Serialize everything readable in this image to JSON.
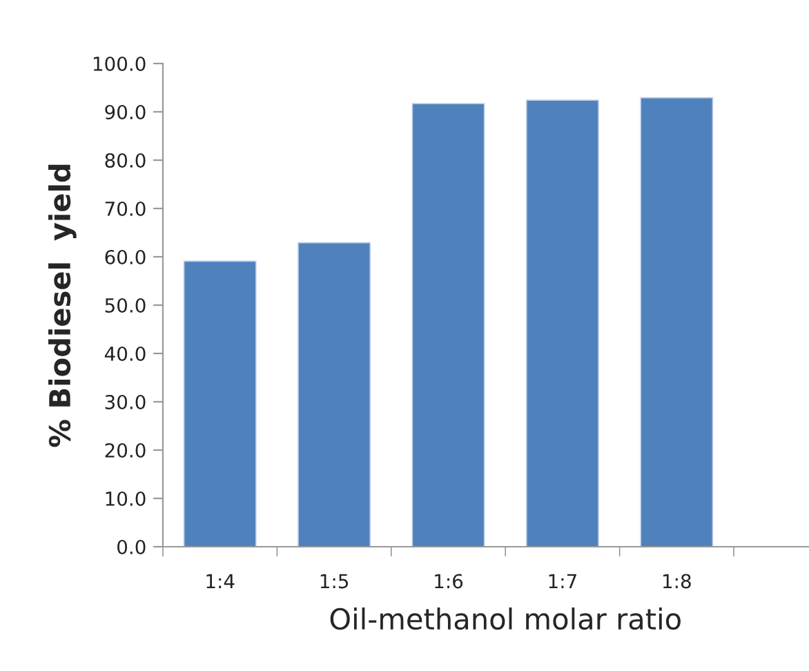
{
  "chart_data": {
    "type": "bar",
    "xlabel": "Oil-methanol molar ratio",
    "ylabel": "% Biodiesel  yield",
    "categories": [
      "1:4",
      "1:5",
      "1:6",
      "1:7",
      "1:8",
      null
    ],
    "values": [
      59.1,
      62.9,
      91.7,
      92.4,
      92.9,
      null
    ],
    "color": "#4f81bd",
    "ylim": [
      0,
      100
    ],
    "yticks": [
      {
        "value": 0,
        "label": "0.0"
      },
      {
        "value": 10,
        "label": "10.0"
      },
      {
        "value": 20,
        "label": "20.0"
      },
      {
        "value": 30,
        "label": "30.0"
      },
      {
        "value": 40,
        "label": "40.0"
      },
      {
        "value": 50,
        "label": "50.0"
      },
      {
        "value": 60,
        "label": "60.0"
      },
      {
        "value": 70,
        "label": "70.0"
      },
      {
        "value": 80,
        "label": "80.0"
      },
      {
        "value": 90,
        "label": "90.0"
      },
      {
        "value": 100,
        "label": "100.0"
      }
    ],
    "grid": false,
    "legend": false
  }
}
